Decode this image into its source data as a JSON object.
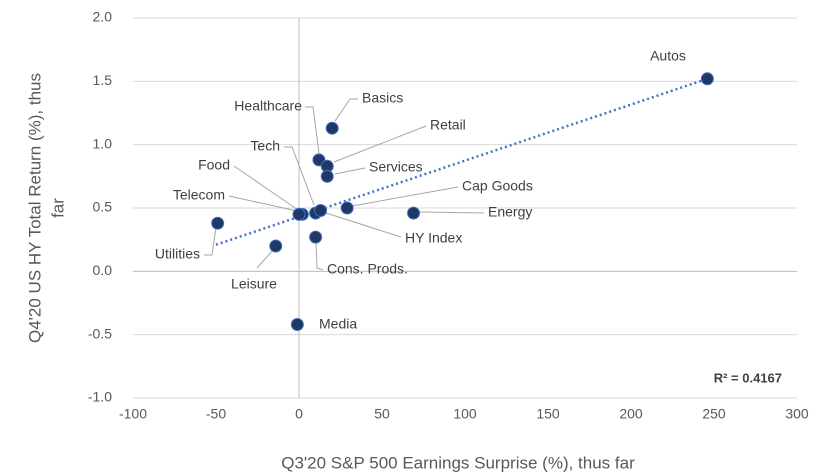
{
  "chart_data": {
    "type": "scatter",
    "x_label": "Q3'20 S&P 500 Earnings Surprise (%), thus far",
    "y_label": [
      "Q4'20 US HY Total Return (%), thus",
      "far"
    ],
    "points": [
      "Autos",
      "Basics",
      "Healthcare",
      "Retail",
      "Services",
      "Tech",
      "Food",
      "Telecom",
      "Cap Goods",
      "Energy",
      "HY Index",
      "Utilities",
      "Leisure",
      "Cons. Prods.",
      "Media"
    ],
    "x": [
      246,
      20,
      12,
      17,
      17,
      10,
      2,
      0,
      29,
      69,
      13,
      -49,
      -14,
      10,
      -1
    ],
    "values": [
      1.52,
      1.13,
      0.88,
      0.83,
      0.75,
      0.46,
      0.45,
      0.45,
      0.5,
      0.46,
      0.48,
      0.38,
      0.2,
      0.27,
      -0.42
    ],
    "color": "#1f3864",
    "trendline": {
      "x": [
        -50,
        246
      ],
      "y": [
        0.21,
        1.52
      ],
      "color": "#4472c4",
      "label": "R² = 0.4167"
    },
    "xlim": [
      -100,
      300
    ],
    "xticks": [
      -100,
      -50,
      0,
      50,
      100,
      150,
      200,
      250,
      300
    ],
    "ylim": [
      -1.0,
      2.0
    ],
    "yticks": [
      {
        "value": -1.0,
        "label": "-1.0"
      },
      {
        "value": -0.5,
        "label": "-0.5"
      },
      {
        "value": 0,
        "label": "0.0"
      },
      {
        "value": 0.5,
        "label": "0.5"
      },
      {
        "value": 1.0,
        "label": "1.0"
      },
      {
        "value": 1.5,
        "label": "1.5"
      },
      {
        "value": 2.0,
        "label": "2.0"
      }
    ],
    "grid": true
  }
}
